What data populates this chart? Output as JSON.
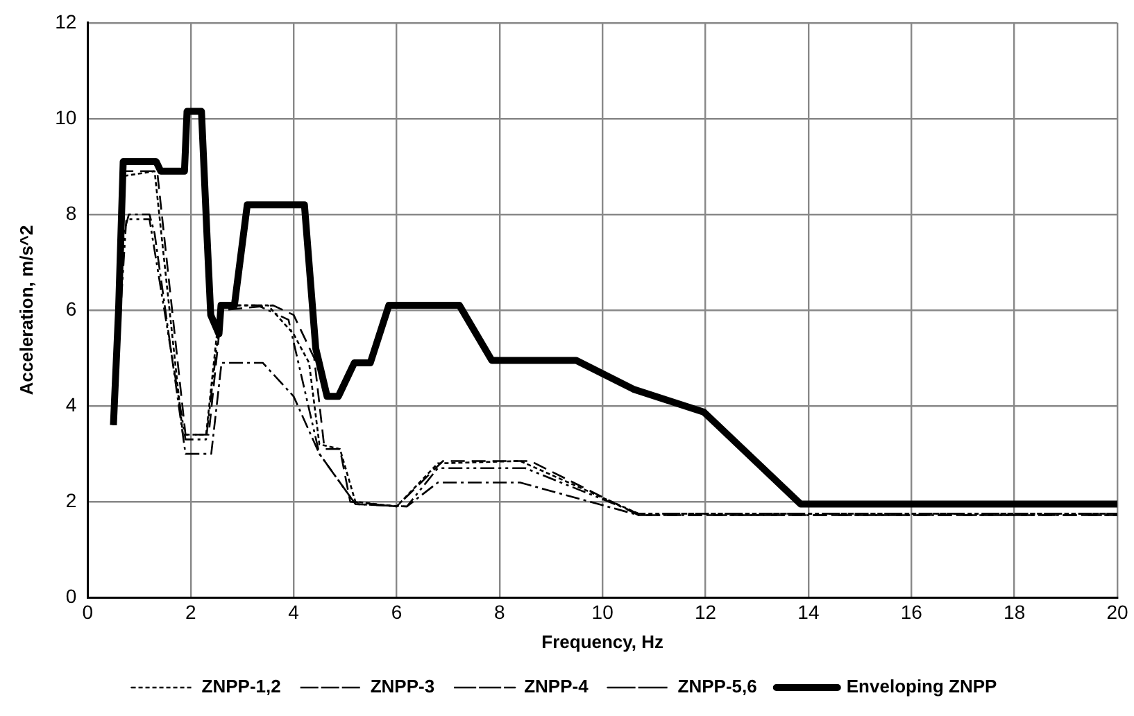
{
  "chart_data": {
    "type": "line",
    "xlabel": "Frequency, Hz",
    "ylabel": "Acceleration, m/s^2",
    "xlim": [
      0,
      20
    ],
    "xticks": [
      0,
      2,
      4,
      6,
      8,
      10,
      12,
      14,
      16,
      18,
      20
    ],
    "ylim": [
      0,
      12
    ],
    "yticks": [
      0,
      2,
      4,
      6,
      8,
      10,
      12
    ],
    "grid": true,
    "legend": "bottom",
    "marker": "none",
    "series": [
      {
        "name": "ZNPP-1,2",
        "color": "#000000",
        "line_style": "dotted",
        "x": [
          0.5,
          0.7,
          1.3,
          1.85,
          2.3,
          2.55,
          2.6,
          3.5,
          4.0,
          4.3,
          4.5,
          4.9,
          5.2,
          6.0,
          6.8,
          8.4,
          10.7,
          20
        ],
        "values": [
          3.6,
          8.8,
          8.9,
          3.4,
          3.4,
          5.9,
          6.1,
          6.1,
          5.5,
          4.9,
          3.2,
          3.1,
          2.0,
          1.9,
          2.8,
          2.85,
          1.75,
          1.75
        ]
      },
      {
        "name": "ZNPP-3",
        "color": "#000000",
        "line_style": "dashed",
        "x": [
          0.5,
          0.7,
          1.35,
          1.9,
          2.35,
          2.6,
          3.6,
          4.0,
          4.4,
          4.6,
          4.9,
          5.1,
          6.0,
          6.9,
          8.6,
          10.7,
          20
        ],
        "values": [
          3.6,
          8.9,
          8.9,
          3.4,
          3.4,
          6.0,
          6.1,
          5.9,
          5.0,
          3.1,
          3.1,
          2.0,
          1.9,
          2.85,
          2.85,
          1.72,
          1.72
        ]
      },
      {
        "name": "ZNPP-4",
        "color": "#000000",
        "line_style": "dashdot",
        "x": [
          0.5,
          0.7,
          0.8,
          1.2,
          1.3,
          1.9,
          2.4,
          2.6,
          3.4,
          4.0,
          4.5,
          5.2,
          6.2,
          6.8,
          8.4,
          10.7,
          20
        ],
        "values": [
          3.6,
          7.6,
          8.0,
          8.0,
          7.6,
          3.0,
          3.0,
          4.9,
          4.9,
          4.2,
          3.0,
          1.95,
          1.9,
          2.4,
          2.4,
          1.72,
          1.72
        ]
      },
      {
        "name": "ZNPP-5,6",
        "color": "#000000",
        "line_style": "dashdotdot",
        "x": [
          0.5,
          0.75,
          1.2,
          1.9,
          2.3,
          2.6,
          3.3,
          3.9,
          4.5,
          5.2,
          6.2,
          6.8,
          8.5,
          10.7,
          20
        ],
        "values": [
          3.6,
          7.9,
          7.9,
          3.3,
          3.3,
          6.1,
          6.1,
          5.8,
          3.0,
          1.95,
          1.9,
          2.7,
          2.7,
          1.75,
          1.75
        ]
      },
      {
        "name": "Enveloping ZNPP",
        "color": "#000000",
        "line_style": "solid",
        "x": [
          0.5,
          0.6,
          0.69,
          1.33,
          1.42,
          1.88,
          1.93,
          2.21,
          2.32,
          2.39,
          2.55,
          2.59,
          2.85,
          3.1,
          4.21,
          4.43,
          4.65,
          4.87,
          5.18,
          5.49,
          5.85,
          7.22,
          7.85,
          9.49,
          10.6,
          11.97,
          13.85,
          20
        ],
        "values": [
          3.6,
          6.0,
          9.1,
          9.1,
          8.9,
          8.9,
          10.15,
          10.15,
          7.5,
          5.9,
          5.5,
          6.1,
          6.1,
          8.2,
          8.2,
          5.2,
          4.2,
          4.2,
          4.9,
          4.9,
          6.1,
          6.1,
          4.95,
          4.95,
          4.35,
          3.87,
          1.95,
          1.95
        ]
      }
    ]
  }
}
